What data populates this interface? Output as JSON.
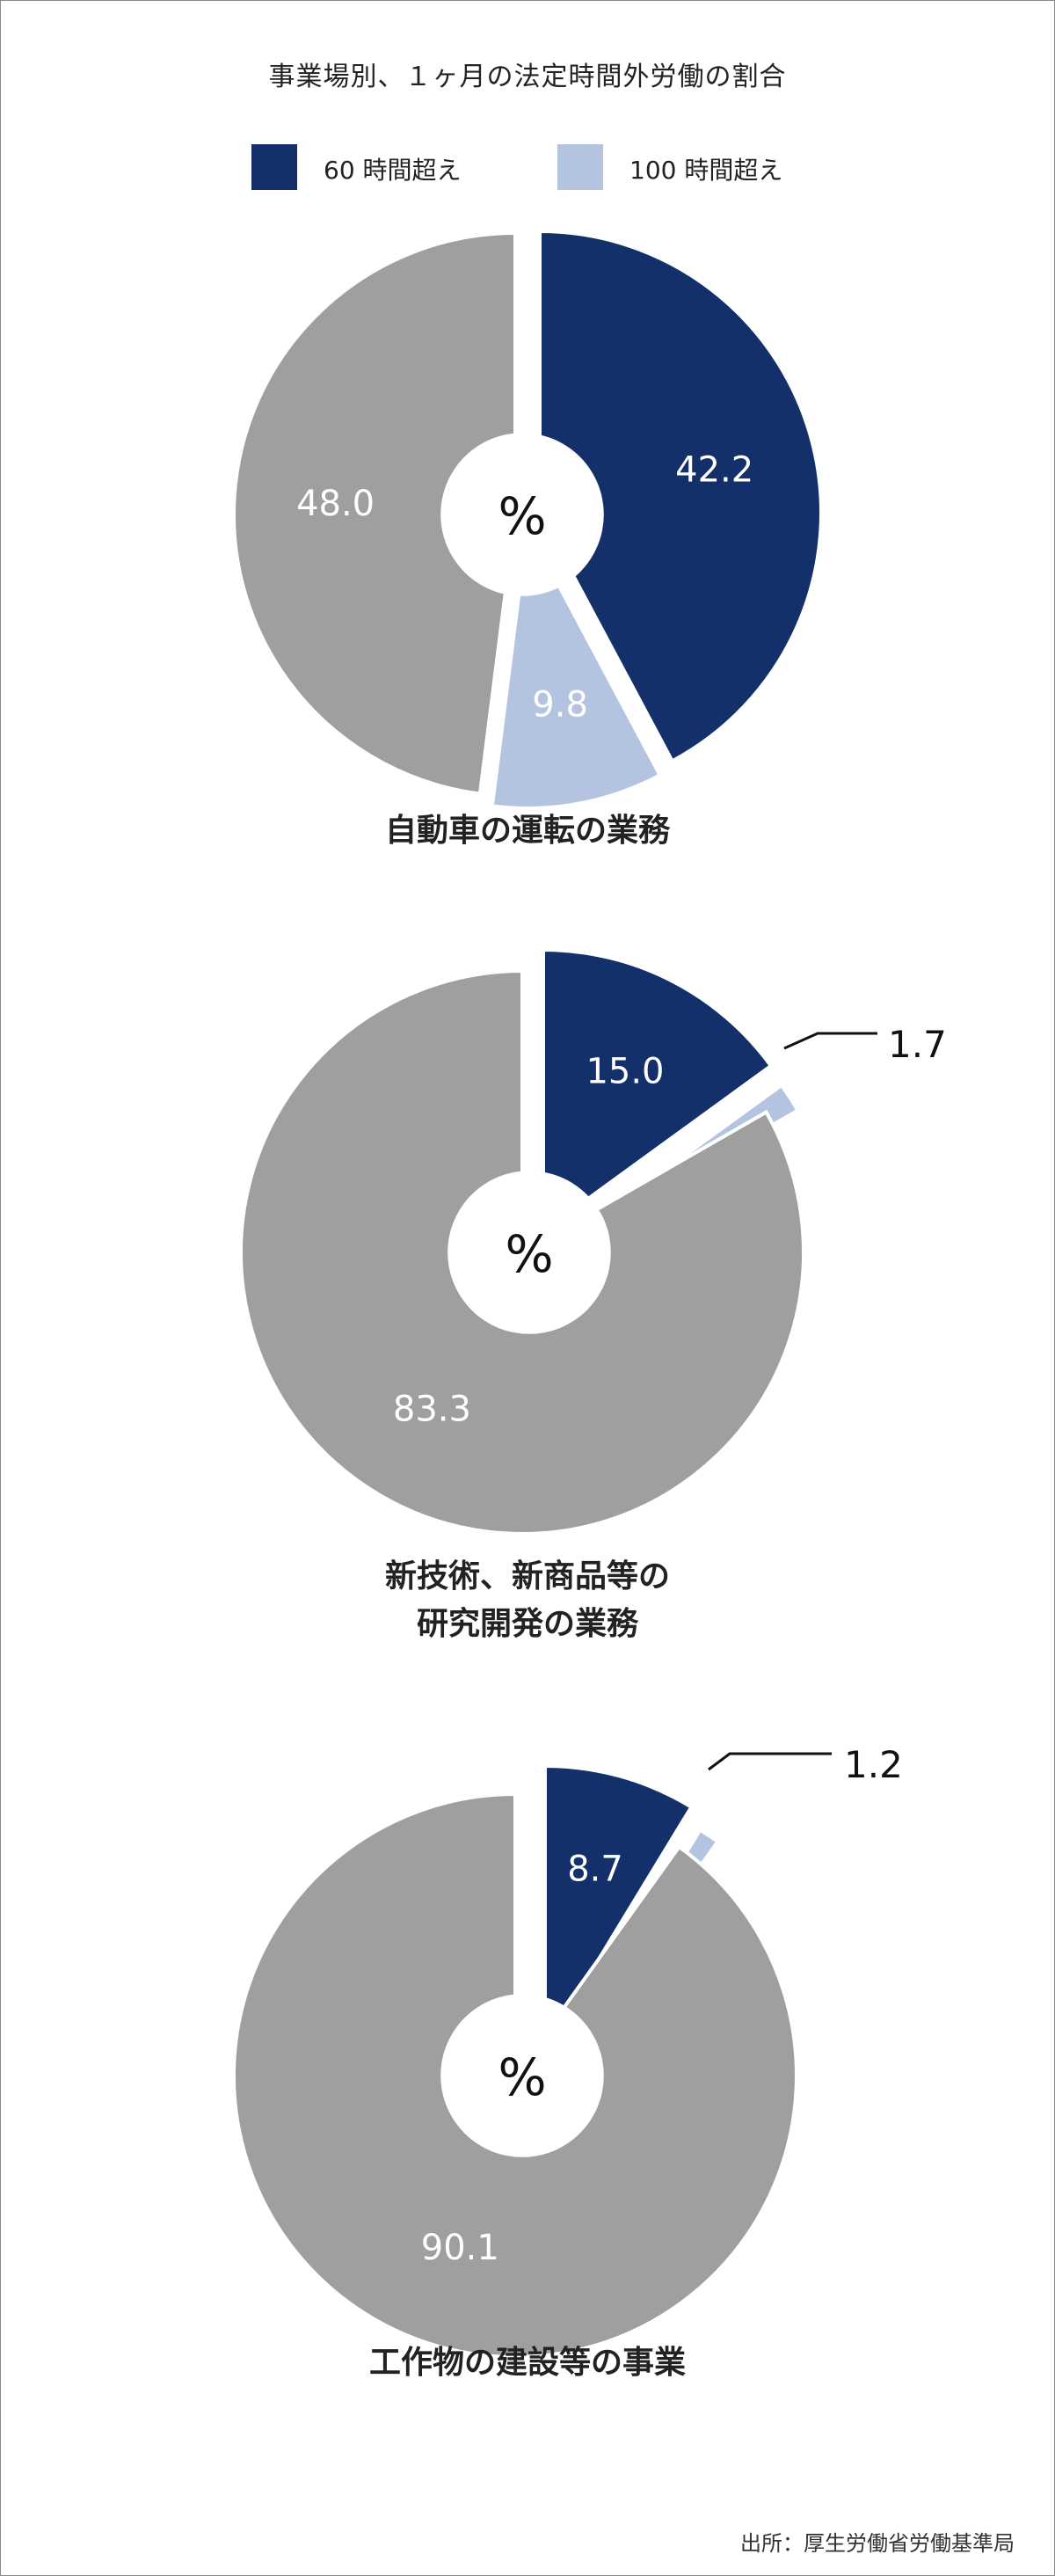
{
  "title": "事業場別、１ヶ月の法定時間外労働の割合",
  "legend": [
    {
      "label": "60 時間超え",
      "color": "#13306a"
    },
    {
      "label": "100 時間超え",
      "color": "#b4c4e0"
    }
  ],
  "colors": {
    "remainder": "#9f9f9f"
  },
  "center_label": "%",
  "source": "出所：厚生労働省労働基準局",
  "chart_data": [
    {
      "type": "pie",
      "title": "自動車の運転の業務",
      "categories": [
        "60 時間超え",
        "100 時間超え",
        ""
      ],
      "values": [
        42.2,
        9.8,
        48.0
      ],
      "value_labels": [
        "42.2",
        "9.8",
        "48.0"
      ]
    },
    {
      "type": "pie",
      "title": "新技術、新商品等の研究開発の業務",
      "title_lines": [
        "新技術、新商品等の",
        "研究開発の業務"
      ],
      "categories": [
        "60 時間超え",
        "100 時間超え",
        ""
      ],
      "values": [
        15.0,
        1.7,
        83.3
      ],
      "value_labels": [
        "15.0",
        "1.7",
        "83.3"
      ]
    },
    {
      "type": "pie",
      "title": "工作物の建設等の事業",
      "categories": [
        "60 時間超え",
        "100 時間超え",
        ""
      ],
      "values": [
        8.7,
        1.2,
        90.1
      ],
      "value_labels": [
        "8.7",
        "1.2",
        "90.1"
      ]
    }
  ]
}
